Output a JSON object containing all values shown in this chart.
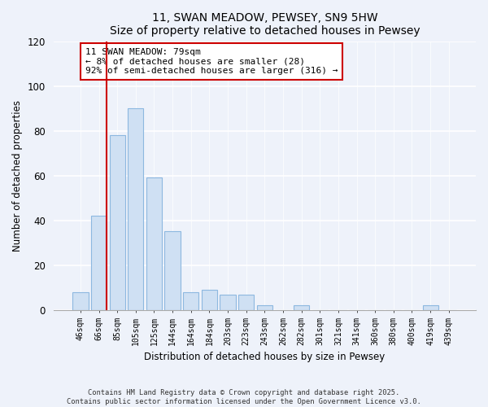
{
  "title": "11, SWAN MEADOW, PEWSEY, SN9 5HW",
  "subtitle": "Size of property relative to detached houses in Pewsey",
  "xlabel": "Distribution of detached houses by size in Pewsey",
  "ylabel": "Number of detached properties",
  "bar_labels": [
    "46sqm",
    "66sqm",
    "85sqm",
    "105sqm",
    "125sqm",
    "144sqm",
    "164sqm",
    "184sqm",
    "203sqm",
    "223sqm",
    "243sqm",
    "262sqm",
    "282sqm",
    "301sqm",
    "321sqm",
    "341sqm",
    "360sqm",
    "380sqm",
    "400sqm",
    "419sqm",
    "439sqm"
  ],
  "bar_values": [
    8,
    42,
    78,
    90,
    59,
    35,
    8,
    9,
    7,
    7,
    2,
    0,
    2,
    0,
    0,
    0,
    0,
    0,
    0,
    2,
    0
  ],
  "bar_color": "#cfe0f3",
  "bar_edge_color": "#8db8e0",
  "vline_color": "#cc0000",
  "ylim": [
    0,
    120
  ],
  "yticks": [
    0,
    20,
    40,
    60,
    80,
    100,
    120
  ],
  "annotation_title": "11 SWAN MEADOW: 79sqm",
  "annotation_line1": "← 8% of detached houses are smaller (28)",
  "annotation_line2": "92% of semi-detached houses are larger (316) →",
  "bg_color": "#eef2fa",
  "grid_color": "#ffffff",
  "footer1": "Contains HM Land Registry data © Crown copyright and database right 2025.",
  "footer2": "Contains public sector information licensed under the Open Government Licence v3.0."
}
